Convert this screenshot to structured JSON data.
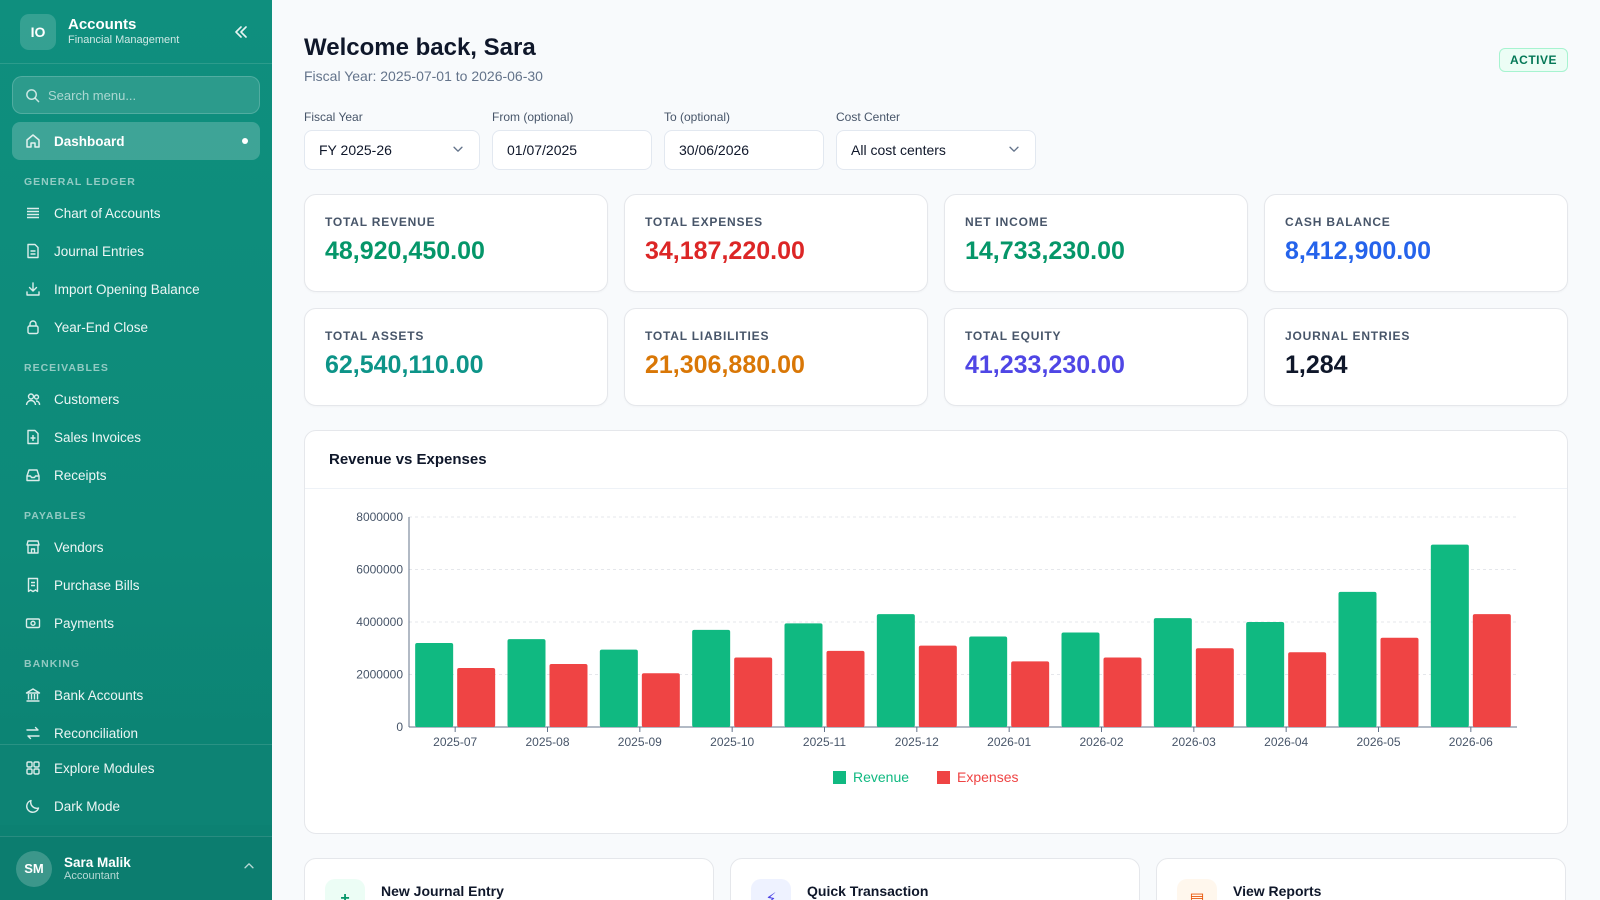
{
  "brand": {
    "logo": "IO",
    "title": "Accounts",
    "subtitle": "Financial Management"
  },
  "search": {
    "placeholder": "Search menu..."
  },
  "nav": {
    "dashboard": "Dashboard",
    "sections": {
      "general_ledger": "GENERAL LEDGER",
      "receivables": "RECEIVABLES",
      "payables": "PAYABLES",
      "banking": "BANKING"
    },
    "chart_of_accounts": "Chart of Accounts",
    "journal_entries": "Journal Entries",
    "import_opening_balance": "Import Opening Balance",
    "year_end_close": "Year-End Close",
    "customers": "Customers",
    "sales_invoices": "Sales Invoices",
    "receipts": "Receipts",
    "vendors": "Vendors",
    "purchase_bills": "Purchase Bills",
    "payments": "Payments",
    "bank_accounts": "Bank Accounts",
    "reconciliation": "Reconciliation",
    "explore_modules": "Explore Modules",
    "dark_mode": "Dark Mode"
  },
  "user": {
    "initials": "SM",
    "name": "Sara Malik",
    "role": "Accountant"
  },
  "header": {
    "title": "Welcome back, Sara",
    "subtitle": "Fiscal Year: 2025-07-01 to 2026-06-30",
    "status": "ACTIVE"
  },
  "filters": {
    "fiscal_year": {
      "label": "Fiscal Year",
      "value": "FY 2025-26"
    },
    "from": {
      "label": "From (optional)",
      "value": "01/07/2025"
    },
    "to": {
      "label": "To (optional)",
      "value": "30/06/2026"
    },
    "cost_center": {
      "label": "Cost Center",
      "value": "All cost centers"
    }
  },
  "stats": [
    {
      "label": "TOTAL REVENUE",
      "value": "48,920,450.00",
      "color": "#059669"
    },
    {
      "label": "TOTAL EXPENSES",
      "value": "34,187,220.00",
      "color": "#dc2626"
    },
    {
      "label": "NET INCOME",
      "value": "14,733,230.00",
      "color": "#059669"
    },
    {
      "label": "CASH BALANCE",
      "value": "8,412,900.00",
      "color": "#2563eb"
    },
    {
      "label": "TOTAL ASSETS",
      "value": "62,540,110.00",
      "color": "#0d9488"
    },
    {
      "label": "TOTAL LIABILITIES",
      "value": "21,306,880.00",
      "color": "#d97706"
    },
    {
      "label": "TOTAL EQUITY",
      "value": "41,233,230.00",
      "color": "#4f46e5"
    },
    {
      "label": "JOURNAL ENTRIES",
      "value": "1,284",
      "color": "#0f172a"
    }
  ],
  "chart_title": "Revenue vs Expenses",
  "chart_data": {
    "type": "bar",
    "title": "Revenue vs Expenses",
    "categories": [
      "2025-07",
      "2025-08",
      "2025-09",
      "2025-10",
      "2025-11",
      "2025-12",
      "2026-01",
      "2026-02",
      "2026-03",
      "2026-04",
      "2026-05",
      "2026-06"
    ],
    "series": [
      {
        "name": "Revenue",
        "color": "#10b981",
        "values": [
          3200000,
          3350000,
          2950000,
          3700000,
          3950000,
          4300000,
          3450000,
          3600000,
          4150000,
          4000000,
          5150000,
          6950000
        ]
      },
      {
        "name": "Expenses",
        "color": "#ef4444",
        "values": [
          2250000,
          2400000,
          2050000,
          2650000,
          2900000,
          3100000,
          2500000,
          2650000,
          3000000,
          2850000,
          3400000,
          4300000
        ]
      }
    ],
    "yticks": [
      0,
      2000000,
      4000000,
      6000000,
      8000000
    ],
    "ylim": [
      0,
      8000000
    ],
    "grid": true,
    "legend": "bottom"
  },
  "actions": [
    {
      "title": "New Journal Entry",
      "icon": "+",
      "bg": "#ecfdf5",
      "fg": "#059669"
    },
    {
      "title": "Quick Transaction",
      "icon": "⚡",
      "bg": "#eef2ff",
      "fg": "#4f46e5"
    },
    {
      "title": "View Reports",
      "icon": "▤",
      "bg": "#fff7ed",
      "fg": "#ea580c"
    }
  ]
}
